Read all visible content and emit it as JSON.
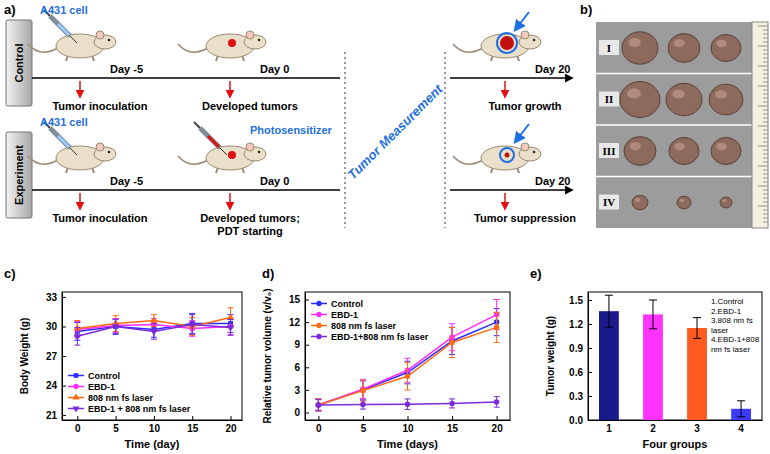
{
  "panel_labels": [
    "a)",
    "b)",
    "c)",
    "d)",
    "e)"
  ],
  "diagram": {
    "rows": [
      {
        "label": "Control",
        "injection": "A431 cell",
        "steps": [
          {
            "day": "Day -5",
            "caption": [
              "Tumor inoculation"
            ]
          },
          {
            "day": "Day 0",
            "caption": [
              "Developed tumors"
            ]
          },
          {
            "day": "Day 20",
            "caption": [
              "Tumor growth"
            ]
          }
        ]
      },
      {
        "label": "Experiment",
        "injection": "A431 cell",
        "agent": "Photosensitizer",
        "steps": [
          {
            "day": "Day -5",
            "caption": [
              "Tumor inoculation"
            ]
          },
          {
            "day": "Day 0",
            "caption": [
              "Developed tumors;",
              "PDT starting"
            ]
          },
          {
            "day": "Day 20",
            "caption": [
              "Tumor suppression"
            ]
          }
        ]
      }
    ],
    "phase": "Tumor Measurement"
  },
  "photo": {
    "rows": [
      "I",
      "II",
      "III",
      "IV"
    ]
  },
  "chart_data": [
    {
      "type": "line",
      "xlabel": "Time (day)",
      "ylabel": "Body Weight (g)",
      "x": [
        0,
        5,
        10,
        15,
        20
      ],
      "xlim": [
        -2,
        21.5
      ],
      "xticks": [
        0,
        5,
        10,
        15,
        20
      ],
      "ylim": [
        20.5,
        33.5
      ],
      "yticks": [
        21,
        24,
        27,
        30,
        33
      ],
      "legend": "lower left",
      "series": [
        {
          "name": "Control",
          "color": "#2b2bff",
          "marker": "square",
          "values": [
            29.5,
            30.0,
            29.7,
            30.3,
            30.3
          ],
          "errors": [
            0.9,
            0.8,
            0.8,
            1.0,
            0.9
          ]
        },
        {
          "name": "EBD-1",
          "color": "#ff2bff",
          "marker": "circle",
          "values": [
            29.7,
            30.1,
            30.2,
            29.8,
            30.0
          ],
          "errors": [
            0.8,
            0.7,
            0.6,
            0.8,
            0.8
          ]
        },
        {
          "name": "808 nm fs laser",
          "color": "#ff6a13",
          "marker": "triangle",
          "values": [
            29.8,
            30.3,
            30.6,
            30.0,
            30.9
          ],
          "errors": [
            0.8,
            0.8,
            0.6,
            0.9,
            1.0
          ]
        },
        {
          "name": "EBD-1 + 808 nm fs laser",
          "color": "#7a2bd9",
          "marker": "triangle-down",
          "values": [
            29.0,
            30.0,
            29.5,
            30.2,
            29.9
          ],
          "errors": [
            0.9,
            0.7,
            0.8,
            1.0,
            0.8
          ]
        }
      ]
    },
    {
      "type": "line",
      "xlabel": "Time (days)",
      "ylabel": "Relative tumor volume (v/v₀)",
      "x": [
        0,
        5,
        10,
        15,
        20
      ],
      "xlim": [
        -1.5,
        21.5
      ],
      "xticks": [
        0,
        5,
        10,
        15,
        20
      ],
      "ylim": [
        -1,
        16
      ],
      "yticks": [
        0,
        3,
        6,
        9,
        12,
        15
      ],
      "legend": "upper left",
      "series": [
        {
          "name": "Control",
          "color": "#2b2bff",
          "marker": "circle",
          "values": [
            1,
            3.0,
            5.3,
            9.5,
            12.0
          ],
          "errors": [
            0.8,
            1.2,
            1.5,
            1.8,
            1.8
          ]
        },
        {
          "name": "EBD-1",
          "color": "#ff2bff",
          "marker": "circle",
          "values": [
            1,
            3.1,
            5.6,
            10.0,
            13.0
          ],
          "errors": [
            0.8,
            1.3,
            1.6,
            1.8,
            2.0
          ]
        },
        {
          "name": "808 nm fs laser",
          "color": "#ff6a13",
          "marker": "circle",
          "values": [
            1,
            2.9,
            4.8,
            9.3,
            11.3
          ],
          "errors": [
            0.8,
            1.4,
            1.8,
            2.0,
            2.0
          ]
        },
        {
          "name": "EBD-1+808 nm fs laser",
          "color": "#7a2bd9",
          "marker": "circle",
          "values": [
            1,
            1.05,
            1.1,
            1.2,
            1.4
          ],
          "errors": [
            0.7,
            0.6,
            0.7,
            0.6,
            0.7
          ]
        }
      ]
    },
    {
      "type": "bar",
      "xlabel": "Four groups",
      "ylabel": "Tumor weight (g)",
      "categories": [
        "1",
        "2",
        "3",
        "4"
      ],
      "values": [
        1.36,
        1.32,
        1.15,
        0.14
      ],
      "errors": [
        0.2,
        0.18,
        0.13,
        0.1
      ],
      "colors": [
        "#1a1a8c",
        "#ff33ff",
        "#ff5a1f",
        "#3b3bff"
      ],
      "ylim": [
        0,
        1.6
      ],
      "yticks": [
        {
          "value": 0,
          "label": "0.0"
        },
        0.3,
        0.6,
        0.9,
        1.2,
        1.5
      ],
      "annotations": [
        "1.Control",
        "2.EBD-1",
        "3.808 nm fs laser",
        "4.EBD-1+808 nm fs laser"
      ]
    }
  ]
}
